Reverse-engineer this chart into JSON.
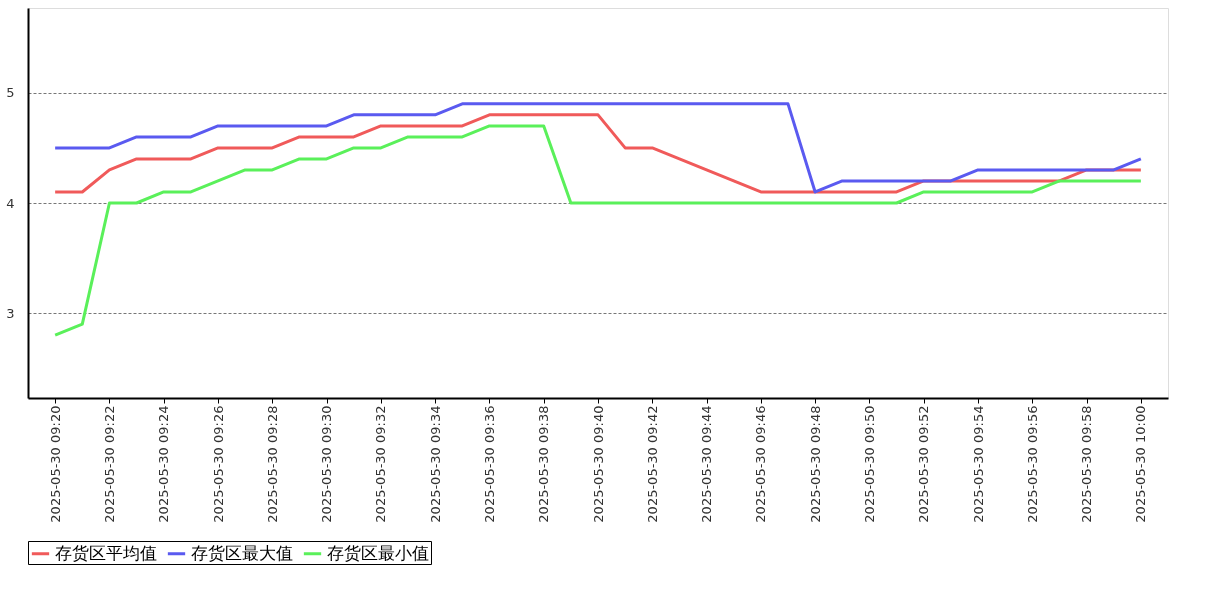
{
  "chart_data": {
    "type": "line",
    "x": [
      "2025-05-30T09:20",
      "2025-05-30T09:21",
      "2025-05-30T09:22",
      "2025-05-30T09:23",
      "2025-05-30T09:24",
      "2025-05-30T09:25",
      "2025-05-30T09:26",
      "2025-05-30T09:27",
      "2025-05-30T09:28",
      "2025-05-30T09:29",
      "2025-05-30T09:30",
      "2025-05-30T09:31",
      "2025-05-30T09:32",
      "2025-05-30T09:33",
      "2025-05-30T09:34",
      "2025-05-30T09:35",
      "2025-05-30T09:36",
      "2025-05-30T09:37",
      "2025-05-30T09:38",
      "2025-05-30T09:39",
      "2025-05-30T09:40",
      "2025-05-30T09:41",
      "2025-05-30T09:42",
      "2025-05-30T09:43",
      "2025-05-30T09:44",
      "2025-05-30T09:45",
      "2025-05-30T09:46",
      "2025-05-30T09:47",
      "2025-05-30T09:48",
      "2025-05-30T09:49",
      "2025-05-30T09:50",
      "2025-05-30T09:51",
      "2025-05-30T09:52",
      "2025-05-30T09:53",
      "2025-05-30T09:54",
      "2025-05-30T09:55",
      "2025-05-30T09:56",
      "2025-05-30T09:57",
      "2025-05-30T09:58",
      "2025-05-30T09:59",
      "2025-05-30T10:00"
    ],
    "series": [
      {
        "name": "存货区平均值",
        "color": "#f05a5a",
        "values": [
          4.1,
          4.1,
          4.3,
          4.4,
          4.4,
          4.4,
          4.5,
          4.5,
          4.5,
          4.6,
          4.6,
          4.6,
          4.7,
          4.7,
          4.7,
          4.7,
          4.8,
          4.8,
          4.8,
          4.8,
          4.8,
          4.5,
          4.5,
          4.4,
          4.3,
          4.2,
          4.1,
          4.1,
          4.1,
          4.1,
          4.1,
          4.1,
          4.2,
          4.2,
          4.2,
          4.2,
          4.2,
          4.2,
          4.3,
          4.3,
          4.3
        ]
      },
      {
        "name": "存货区最大值",
        "color": "#5a5af0",
        "values": [
          4.5,
          4.5,
          4.5,
          4.6,
          4.6,
          4.6,
          4.7,
          4.7,
          4.7,
          4.7,
          4.7,
          4.8,
          4.8,
          4.8,
          4.8,
          4.9,
          4.9,
          4.9,
          4.9,
          4.9,
          4.9,
          4.9,
          4.9,
          4.9,
          4.9,
          4.9,
          4.9,
          4.9,
          4.1,
          4.2,
          4.2,
          4.2,
          4.2,
          4.2,
          4.3,
          4.3,
          4.3,
          4.3,
          4.3,
          4.3,
          4.4
        ]
      },
      {
        "name": "存货区最小值",
        "color": "#5af05a",
        "values": [
          2.8,
          2.9,
          4.0,
          4.0,
          4.1,
          4.1,
          4.2,
          4.3,
          4.3,
          4.4,
          4.4,
          4.5,
          4.5,
          4.6,
          4.6,
          4.6,
          4.7,
          4.7,
          4.7,
          4.0,
          4.0,
          4.0,
          4.0,
          4.0,
          4.0,
          4.0,
          4.0,
          4.0,
          4.0,
          4.0,
          4.0,
          4.0,
          4.1,
          4.1,
          4.1,
          4.1,
          4.1,
          4.2,
          4.2,
          4.2,
          4.2
        ]
      }
    ],
    "xlim": [
      "2025-05-30T09:19",
      "2025-05-30T10:01"
    ],
    "xticks": [
      {
        "value": "2025-05-30T09:20",
        "label": "2025-05-30 09:20"
      },
      {
        "value": "2025-05-30T09:22",
        "label": "2025-05-30 09:22"
      },
      {
        "value": "2025-05-30T09:24",
        "label": "2025-05-30 09:24"
      },
      {
        "value": "2025-05-30T09:26",
        "label": "2025-05-30 09:26"
      },
      {
        "value": "2025-05-30T09:28",
        "label": "2025-05-30 09:28"
      },
      {
        "value": "2025-05-30T09:30",
        "label": "2025-05-30 09:30"
      },
      {
        "value": "2025-05-30T09:32",
        "label": "2025-05-30 09:32"
      },
      {
        "value": "2025-05-30T09:34",
        "label": "2025-05-30 09:34"
      },
      {
        "value": "2025-05-30T09:36",
        "label": "2025-05-30 09:36"
      },
      {
        "value": "2025-05-30T09:38",
        "label": "2025-05-30 09:38"
      },
      {
        "value": "2025-05-30T09:40",
        "label": "2025-05-30 09:40"
      },
      {
        "value": "2025-05-30T09:42",
        "label": "2025-05-30 09:42"
      },
      {
        "value": "2025-05-30T09:44",
        "label": "2025-05-30 09:44"
      },
      {
        "value": "2025-05-30T09:46",
        "label": "2025-05-30 09:46"
      },
      {
        "value": "2025-05-30T09:48",
        "label": "2025-05-30 09:48"
      },
      {
        "value": "2025-05-30T09:50",
        "label": "2025-05-30 09:50"
      },
      {
        "value": "2025-05-30T09:52",
        "label": "2025-05-30 09:52"
      },
      {
        "value": "2025-05-30T09:54",
        "label": "2025-05-30 09:54"
      },
      {
        "value": "2025-05-30T09:56",
        "label": "2025-05-30 09:56"
      },
      {
        "value": "2025-05-30T09:58",
        "label": "2025-05-30 09:58"
      },
      {
        "value": "2025-05-30T10:00",
        "label": "2025-05-30 10:00"
      }
    ],
    "ylim": [
      2.23,
      5.77
    ],
    "yticks": [
      3,
      4,
      5
    ],
    "grid": "y",
    "legend": "bottom",
    "marker": "none",
    "line_style": "solid"
  }
}
